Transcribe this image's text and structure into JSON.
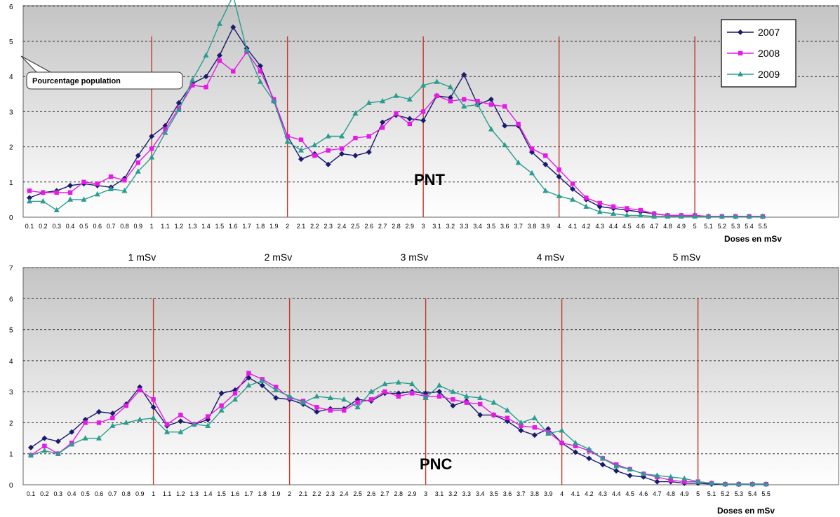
{
  "colors": {
    "s2007": "#1a1a6e",
    "s2008": "#e619e6",
    "s2009": "#2a9d8f",
    "vline": "#c0392b",
    "grid": "#333333"
  },
  "chart_data": [
    {
      "type": "line",
      "annotation": "PNT",
      "callout": "Pourcentage population",
      "xlabel": "Doses en mSv",
      "ylim": [
        0,
        6
      ],
      "yticks": [
        "0",
        "1",
        "2",
        "3",
        "4",
        "5",
        "6"
      ],
      "grid": true,
      "legend": "top-right",
      "markers_x": [
        1,
        2,
        3,
        4,
        5
      ],
      "x_tick_labels": [
        "0.1",
        "0.2",
        "0.3",
        "0.4",
        "0.5",
        "0.6",
        "0.7",
        "0.8",
        "0.9",
        "1",
        "1.1",
        "1.2",
        "1.3",
        "1.4",
        "1.5",
        "1.6",
        "1.7",
        "1.8",
        "1.9",
        "2",
        "2.1",
        "2.2",
        "2.3",
        "2.4",
        "2.5",
        "2.6",
        "2.7",
        "2.8",
        "2.9",
        "3",
        "3.1",
        "3.2",
        "3.3",
        "3.4",
        "3.5",
        "3.6",
        "3.7",
        "3.8",
        "3.9",
        "4",
        "4.1",
        "4.2",
        "4.3",
        "4.4",
        "4.5",
        "4.6",
        "4.7",
        "4.8",
        "4.9",
        "5",
        "5.1",
        "5.2",
        "5.3",
        "5.4",
        "5.5"
      ],
      "series": [
        {
          "name": "2007",
          "values": [
            0.55,
            0.7,
            0.75,
            0.9,
            0.95,
            0.9,
            0.85,
            1.1,
            1.75,
            2.3,
            2.6,
            3.25,
            3.8,
            4.0,
            4.6,
            5.4,
            4.8,
            4.3,
            3.3,
            2.3,
            1.65,
            1.8,
            1.5,
            1.8,
            1.75,
            1.85,
            2.7,
            2.9,
            2.8,
            2.75,
            3.45,
            3.4,
            4.05,
            3.2,
            3.35,
            2.6,
            2.6,
            1.85,
            1.5,
            1.15,
            0.8,
            0.5,
            0.3,
            0.25,
            0.2,
            0.15,
            0.1,
            0.05,
            0.05,
            0.05,
            0.02,
            0.02,
            0.02,
            0.02,
            0.02
          ]
        },
        {
          "name": "2008",
          "values": [
            0.75,
            0.7,
            0.7,
            0.7,
            1.0,
            0.95,
            1.15,
            1.05,
            1.55,
            1.95,
            2.5,
            3.1,
            3.75,
            3.7,
            4.45,
            4.15,
            4.7,
            4.15,
            3.35,
            2.3,
            2.2,
            1.75,
            1.9,
            1.95,
            2.25,
            2.3,
            2.55,
            2.95,
            2.65,
            3.0,
            3.45,
            3.3,
            3.35,
            3.3,
            3.2,
            3.15,
            2.65,
            1.95,
            1.75,
            1.35,
            0.95,
            0.55,
            0.4,
            0.3,
            0.25,
            0.2,
            0.1,
            0.05,
            0.05,
            0.05,
            0.02,
            0.02,
            0.02,
            0.02,
            0.02
          ]
        },
        {
          "name": "2009",
          "values": [
            0.45,
            0.45,
            0.2,
            0.5,
            0.5,
            0.65,
            0.8,
            0.75,
            1.3,
            1.7,
            2.4,
            3.05,
            3.9,
            4.6,
            5.5,
            6.3,
            4.75,
            3.85,
            3.3,
            2.15,
            1.9,
            2.05,
            2.3,
            2.3,
            2.95,
            3.25,
            3.3,
            3.45,
            3.35,
            3.75,
            3.85,
            3.7,
            3.15,
            3.2,
            2.5,
            2.05,
            1.55,
            1.25,
            0.75,
            0.6,
            0.5,
            0.3,
            0.15,
            0.1,
            0.05,
            0.05,
            0.02,
            0.02,
            0.02,
            0.02,
            0.02,
            0.02,
            0.02,
            0.02,
            0.02
          ]
        }
      ]
    },
    {
      "type": "line",
      "annotation": "PNC",
      "xlabel": "Doses en mSv",
      "ylim": [
        0,
        7
      ],
      "yticks": [
        "0",
        "1",
        "2",
        "3",
        "4",
        "5",
        "6",
        "7"
      ],
      "grid": true,
      "markers_x": [
        1,
        2,
        3,
        4,
        5
      ],
      "marker_labels": [
        "1 mSv",
        "2 mSv",
        "3 mSv",
        "4 mSv",
        "5 mSv"
      ],
      "x_tick_labels": [
        "0.1",
        "0.2",
        "0.3",
        "0.4",
        "0.5",
        "0.6",
        "0.7",
        "0.8",
        "0.9",
        "1",
        "1.1",
        "1.2",
        "1.3",
        "1.4",
        "1.5",
        "1.6",
        "1.7",
        "1.8",
        "1.9",
        "2",
        "2.1",
        "2.2",
        "2.3",
        "2.4",
        "2.5",
        "2.6",
        "2.7",
        "2.8",
        "2.9",
        "3",
        "3.1",
        "3.2",
        "3.3",
        "3.4",
        "3.5",
        "3.6",
        "3.7",
        "3.8",
        "3.9",
        "4",
        "4.1",
        "4.2",
        "4.3",
        "4.4",
        "4.5",
        "4.6",
        "4.7",
        "4.8",
        "4.9",
        "5",
        "5.1",
        "5.2",
        "5.3",
        "5.4",
        "5.5"
      ],
      "series": [
        {
          "name": "2007",
          "values": [
            1.2,
            1.5,
            1.4,
            1.7,
            2.1,
            2.35,
            2.3,
            2.6,
            3.15,
            2.5,
            1.9,
            2.05,
            1.95,
            2.1,
            2.95,
            3.05,
            3.45,
            3.2,
            2.8,
            2.75,
            2.6,
            2.35,
            2.45,
            2.45,
            2.75,
            2.7,
            2.95,
            2.95,
            3.0,
            2.95,
            3.0,
            2.55,
            2.7,
            2.25,
            2.25,
            2.05,
            1.75,
            1.6,
            1.8,
            1.35,
            1.05,
            0.85,
            0.65,
            0.45,
            0.3,
            0.25,
            0.1,
            0.1,
            0.05,
            0.05,
            0.02,
            0.02,
            0.02,
            0.02,
            0.02
          ]
        },
        {
          "name": "2008",
          "values": [
            0.95,
            1.25,
            1.0,
            1.35,
            2.0,
            2.0,
            2.15,
            2.55,
            3.05,
            2.75,
            1.95,
            2.25,
            1.95,
            2.2,
            2.55,
            2.95,
            3.6,
            3.4,
            3.15,
            2.8,
            2.7,
            2.5,
            2.4,
            2.4,
            2.65,
            2.75,
            3.0,
            2.85,
            2.95,
            2.85,
            2.85,
            2.75,
            2.65,
            2.6,
            2.25,
            2.15,
            1.9,
            1.85,
            1.7,
            1.35,
            1.25,
            1.1,
            0.85,
            0.65,
            0.5,
            0.35,
            0.25,
            0.15,
            0.1,
            0.1,
            0.05,
            0.02,
            0.02,
            0.02,
            0.02
          ]
        },
        {
          "name": "2009",
          "values": [
            0.95,
            1.1,
            1.0,
            1.3,
            1.5,
            1.5,
            1.9,
            2.0,
            2.1,
            2.15,
            1.7,
            1.7,
            1.95,
            1.9,
            2.4,
            2.75,
            3.2,
            3.35,
            3.05,
            2.85,
            2.65,
            2.85,
            2.8,
            2.75,
            2.5,
            3.0,
            3.25,
            3.3,
            3.25,
            2.8,
            3.2,
            3.0,
            2.85,
            2.8,
            2.65,
            2.4,
            2.0,
            2.15,
            1.65,
            1.75,
            1.35,
            1.15,
            0.85,
            0.6,
            0.5,
            0.35,
            0.3,
            0.25,
            0.2,
            0.1,
            0.05,
            0.02,
            0.02,
            0.02,
            0.02
          ]
        }
      ]
    }
  ]
}
